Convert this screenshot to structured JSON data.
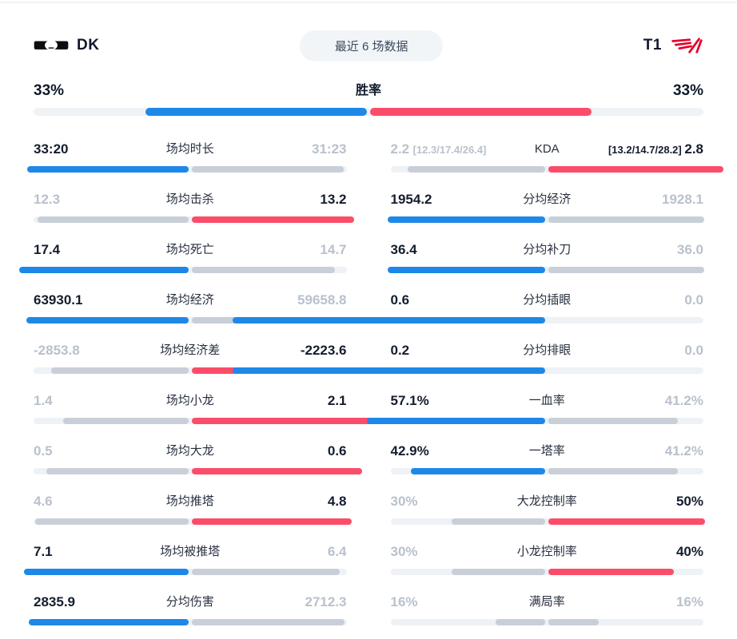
{
  "colors": {
    "blue": "#1e88e8",
    "red": "#fb4d69",
    "gray": "#c9cfd8",
    "track": "#eef1f5",
    "none": "transparent"
  },
  "header": {
    "left_team": {
      "name": "DK",
      "logo": "dk-logo"
    },
    "right_team": {
      "name": "T1",
      "logo": "t1-logo"
    },
    "range_label": "最近 6 场数据"
  },
  "winrate": {
    "label": "胜率",
    "left_value": "33%",
    "right_value": "33%",
    "left_pct": 33,
    "right_pct": 33
  },
  "stats": {
    "columns": [
      {
        "rows": [
          {
            "label": "场均时长",
            "left": {
              "text": "33:20",
              "state": "win",
              "bar": "blue",
              "bar_pct": 51.5
            },
            "right": {
              "text": "31:23",
              "state": "lose",
              "bar": "gray",
              "bar_pct": 48.5
            }
          },
          {
            "label": "场均击杀",
            "left": {
              "text": "12.3",
              "state": "lose",
              "bar": "gray",
              "bar_pct": 48.2
            },
            "right": {
              "text": "13.2",
              "state": "win",
              "bar": "red",
              "bar_pct": 51.8
            }
          },
          {
            "label": "场均死亡",
            "left": {
              "text": "17.4",
              "state": "win",
              "bar": "blue",
              "bar_pct": 54.2
            },
            "right": {
              "text": "14.7",
              "state": "lose",
              "bar": "gray",
              "bar_pct": 45.8
            }
          },
          {
            "label": "场均经济",
            "left": {
              "text": "63930.1",
              "state": "win",
              "bar": "blue",
              "bar_pct": 51.7
            },
            "right": {
              "text": "59658.8",
              "state": "lose",
              "bar": "gray",
              "bar_pct": 48.3
            }
          },
          {
            "label": "场均经济差",
            "left": {
              "text": "-2853.8",
              "state": "lose",
              "bar": "gray",
              "bar_pct": 43.8
            },
            "right": {
              "text": "-2223.6",
              "state": "win",
              "bar": "red",
              "bar_pct": 56.2
            }
          },
          {
            "label": "场均小龙",
            "left": {
              "text": "1.4",
              "state": "lose",
              "bar": "gray",
              "bar_pct": 40
            },
            "right": {
              "text": "2.1",
              "state": "win",
              "bar": "red",
              "bar_pct": 60
            }
          },
          {
            "label": "场均大龙",
            "left": {
              "text": "0.5",
              "state": "lose",
              "bar": "gray",
              "bar_pct": 45.5
            },
            "right": {
              "text": "0.6",
              "state": "win",
              "bar": "red",
              "bar_pct": 54.5
            }
          },
          {
            "label": "场均推塔",
            "left": {
              "text": "4.6",
              "state": "lose",
              "bar": "gray",
              "bar_pct": 48.9
            },
            "right": {
              "text": "4.8",
              "state": "win",
              "bar": "red",
              "bar_pct": 51.1
            }
          },
          {
            "label": "场均被推塔",
            "left": {
              "text": "7.1",
              "state": "win",
              "bar": "blue",
              "bar_pct": 52.6
            },
            "right": {
              "text": "6.4",
              "state": "lose",
              "bar": "gray",
              "bar_pct": 47.4
            }
          },
          {
            "label": "分均伤害",
            "left": {
              "text": "2835.9",
              "state": "win",
              "bar": "blue",
              "bar_pct": 51.1
            },
            "right": {
              "text": "2712.3",
              "state": "lose",
              "bar": "gray",
              "bar_pct": 48.9
            }
          }
        ]
      },
      {
        "rows": [
          {
            "label": "KDA",
            "left": {
              "text": "2.2",
              "detail": "[12.3/17.4/26.4]",
              "state": "lose",
              "bar": "gray",
              "bar_pct": 44
            },
            "right": {
              "text": "2.8",
              "detail": "[13.2/14.7/28.2]",
              "state": "win",
              "bar": "red",
              "bar_pct": 56
            }
          },
          {
            "label": "分均经济",
            "left": {
              "text": "1954.2",
              "state": "win",
              "bar": "blue",
              "bar_pct": 50.3
            },
            "right": {
              "text": "1928.1",
              "state": "lose",
              "bar": "gray",
              "bar_pct": 49.7
            }
          },
          {
            "label": "分均补刀",
            "left": {
              "text": "36.4",
              "state": "win",
              "bar": "blue",
              "bar_pct": 50.3
            },
            "right": {
              "text": "36.0",
              "state": "lose",
              "bar": "gray",
              "bar_pct": 49.7
            }
          },
          {
            "label": "分均插眼",
            "left": {
              "text": "0.6",
              "state": "win",
              "bar": "blue",
              "bar_pct": 100
            },
            "right": {
              "text": "0.0",
              "state": "lose",
              "bar": "none",
              "bar_pct": 0
            }
          },
          {
            "label": "分均排眼",
            "left": {
              "text": "0.2",
              "state": "win",
              "bar": "blue",
              "bar_pct": 100
            },
            "right": {
              "text": "0.0",
              "state": "lose",
              "bar": "none",
              "bar_pct": 0
            }
          },
          {
            "label": "一血率",
            "left": {
              "text": "57.1%",
              "state": "win",
              "bar": "blue",
              "bar_pct": 57.1
            },
            "right": {
              "text": "41.2%",
              "state": "lose",
              "bar": "gray",
              "bar_pct": 41.2
            }
          },
          {
            "label": "一塔率",
            "left": {
              "text": "42.9%",
              "state": "win",
              "bar": "blue",
              "bar_pct": 42.9
            },
            "right": {
              "text": "41.2%",
              "state": "lose",
              "bar": "gray",
              "bar_pct": 41.2
            }
          },
          {
            "label": "大龙控制率",
            "left": {
              "text": "30%",
              "state": "lose",
              "bar": "gray",
              "bar_pct": 30
            },
            "right": {
              "text": "50%",
              "state": "win",
              "bar": "red",
              "bar_pct": 50
            }
          },
          {
            "label": "小龙控制率",
            "left": {
              "text": "30%",
              "state": "lose",
              "bar": "gray",
              "bar_pct": 30
            },
            "right": {
              "text": "40%",
              "state": "win",
              "bar": "red",
              "bar_pct": 40
            }
          },
          {
            "label": "满局率",
            "left": {
              "text": "16%",
              "state": "tie",
              "bar": "gray",
              "bar_pct": 16
            },
            "right": {
              "text": "16%",
              "state": "tie",
              "bar": "gray",
              "bar_pct": 16
            }
          }
        ]
      }
    ]
  }
}
